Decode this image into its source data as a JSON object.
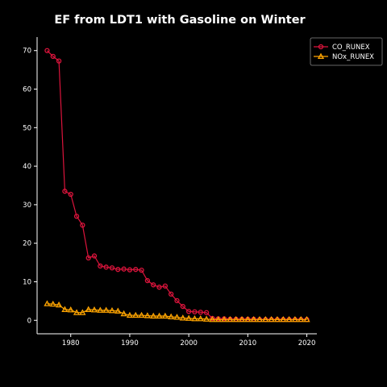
{
  "chart_data": {
    "type": "line",
    "title": "EF from LDT1 with Gasoline on Winter",
    "xlabel": "",
    "ylabel": "",
    "xlim": [
      1974.3,
      2021.7
    ],
    "ylim": [
      -3.5,
      73.5
    ],
    "xticks": [
      1980,
      1990,
      2000,
      2010,
      2020
    ],
    "yticks": [
      0,
      10,
      20,
      30,
      40,
      50,
      60,
      70
    ],
    "grid": false,
    "legend_position": "top-right",
    "x": [
      1976,
      1977,
      1978,
      1979,
      1980,
      1981,
      1982,
      1983,
      1984,
      1985,
      1986,
      1987,
      1988,
      1989,
      1990,
      1991,
      1992,
      1993,
      1994,
      1995,
      1996,
      1997,
      1998,
      1999,
      2000,
      2001,
      2002,
      2003,
      2004,
      2005,
      2006,
      2007,
      2008,
      2009,
      2010,
      2011,
      2012,
      2013,
      2014,
      2015,
      2016,
      2017,
      2018,
      2019,
      2020
    ],
    "series": [
      {
        "name": "CO_RUNEX",
        "color": "#dc143c",
        "marker": "circle",
        "values": [
          70.0,
          68.5,
          67.3,
          33.5,
          32.7,
          27.0,
          24.7,
          16.2,
          16.7,
          14.1,
          13.8,
          13.6,
          13.2,
          13.3,
          13.1,
          13.2,
          13.0,
          10.3,
          9.2,
          8.6,
          8.9,
          6.8,
          5.1,
          3.6,
          2.3,
          2.2,
          2.1,
          2.0,
          0.5,
          0.4,
          0.4,
          0.3,
          0.3,
          0.3,
          0.3,
          0.3,
          0.2,
          0.2,
          0.2,
          0.2,
          0.2,
          0.2,
          0.2,
          0.2,
          0.2
        ]
      },
      {
        "name": "NOx_RUNEX",
        "color": "#ffa500",
        "marker": "triangle",
        "values": [
          4.3,
          4.2,
          4.0,
          2.8,
          2.7,
          2.0,
          2.0,
          2.8,
          2.7,
          2.6,
          2.6,
          2.5,
          2.4,
          1.7,
          1.3,
          1.3,
          1.3,
          1.2,
          1.1,
          1.1,
          1.1,
          0.9,
          0.8,
          0.6,
          0.5,
          0.4,
          0.4,
          0.3,
          0.2,
          0.2,
          0.2,
          0.2,
          0.2,
          0.2,
          0.2,
          0.2,
          0.2,
          0.2,
          0.2,
          0.2,
          0.2,
          0.2,
          0.2,
          0.2,
          0.2
        ]
      }
    ]
  }
}
